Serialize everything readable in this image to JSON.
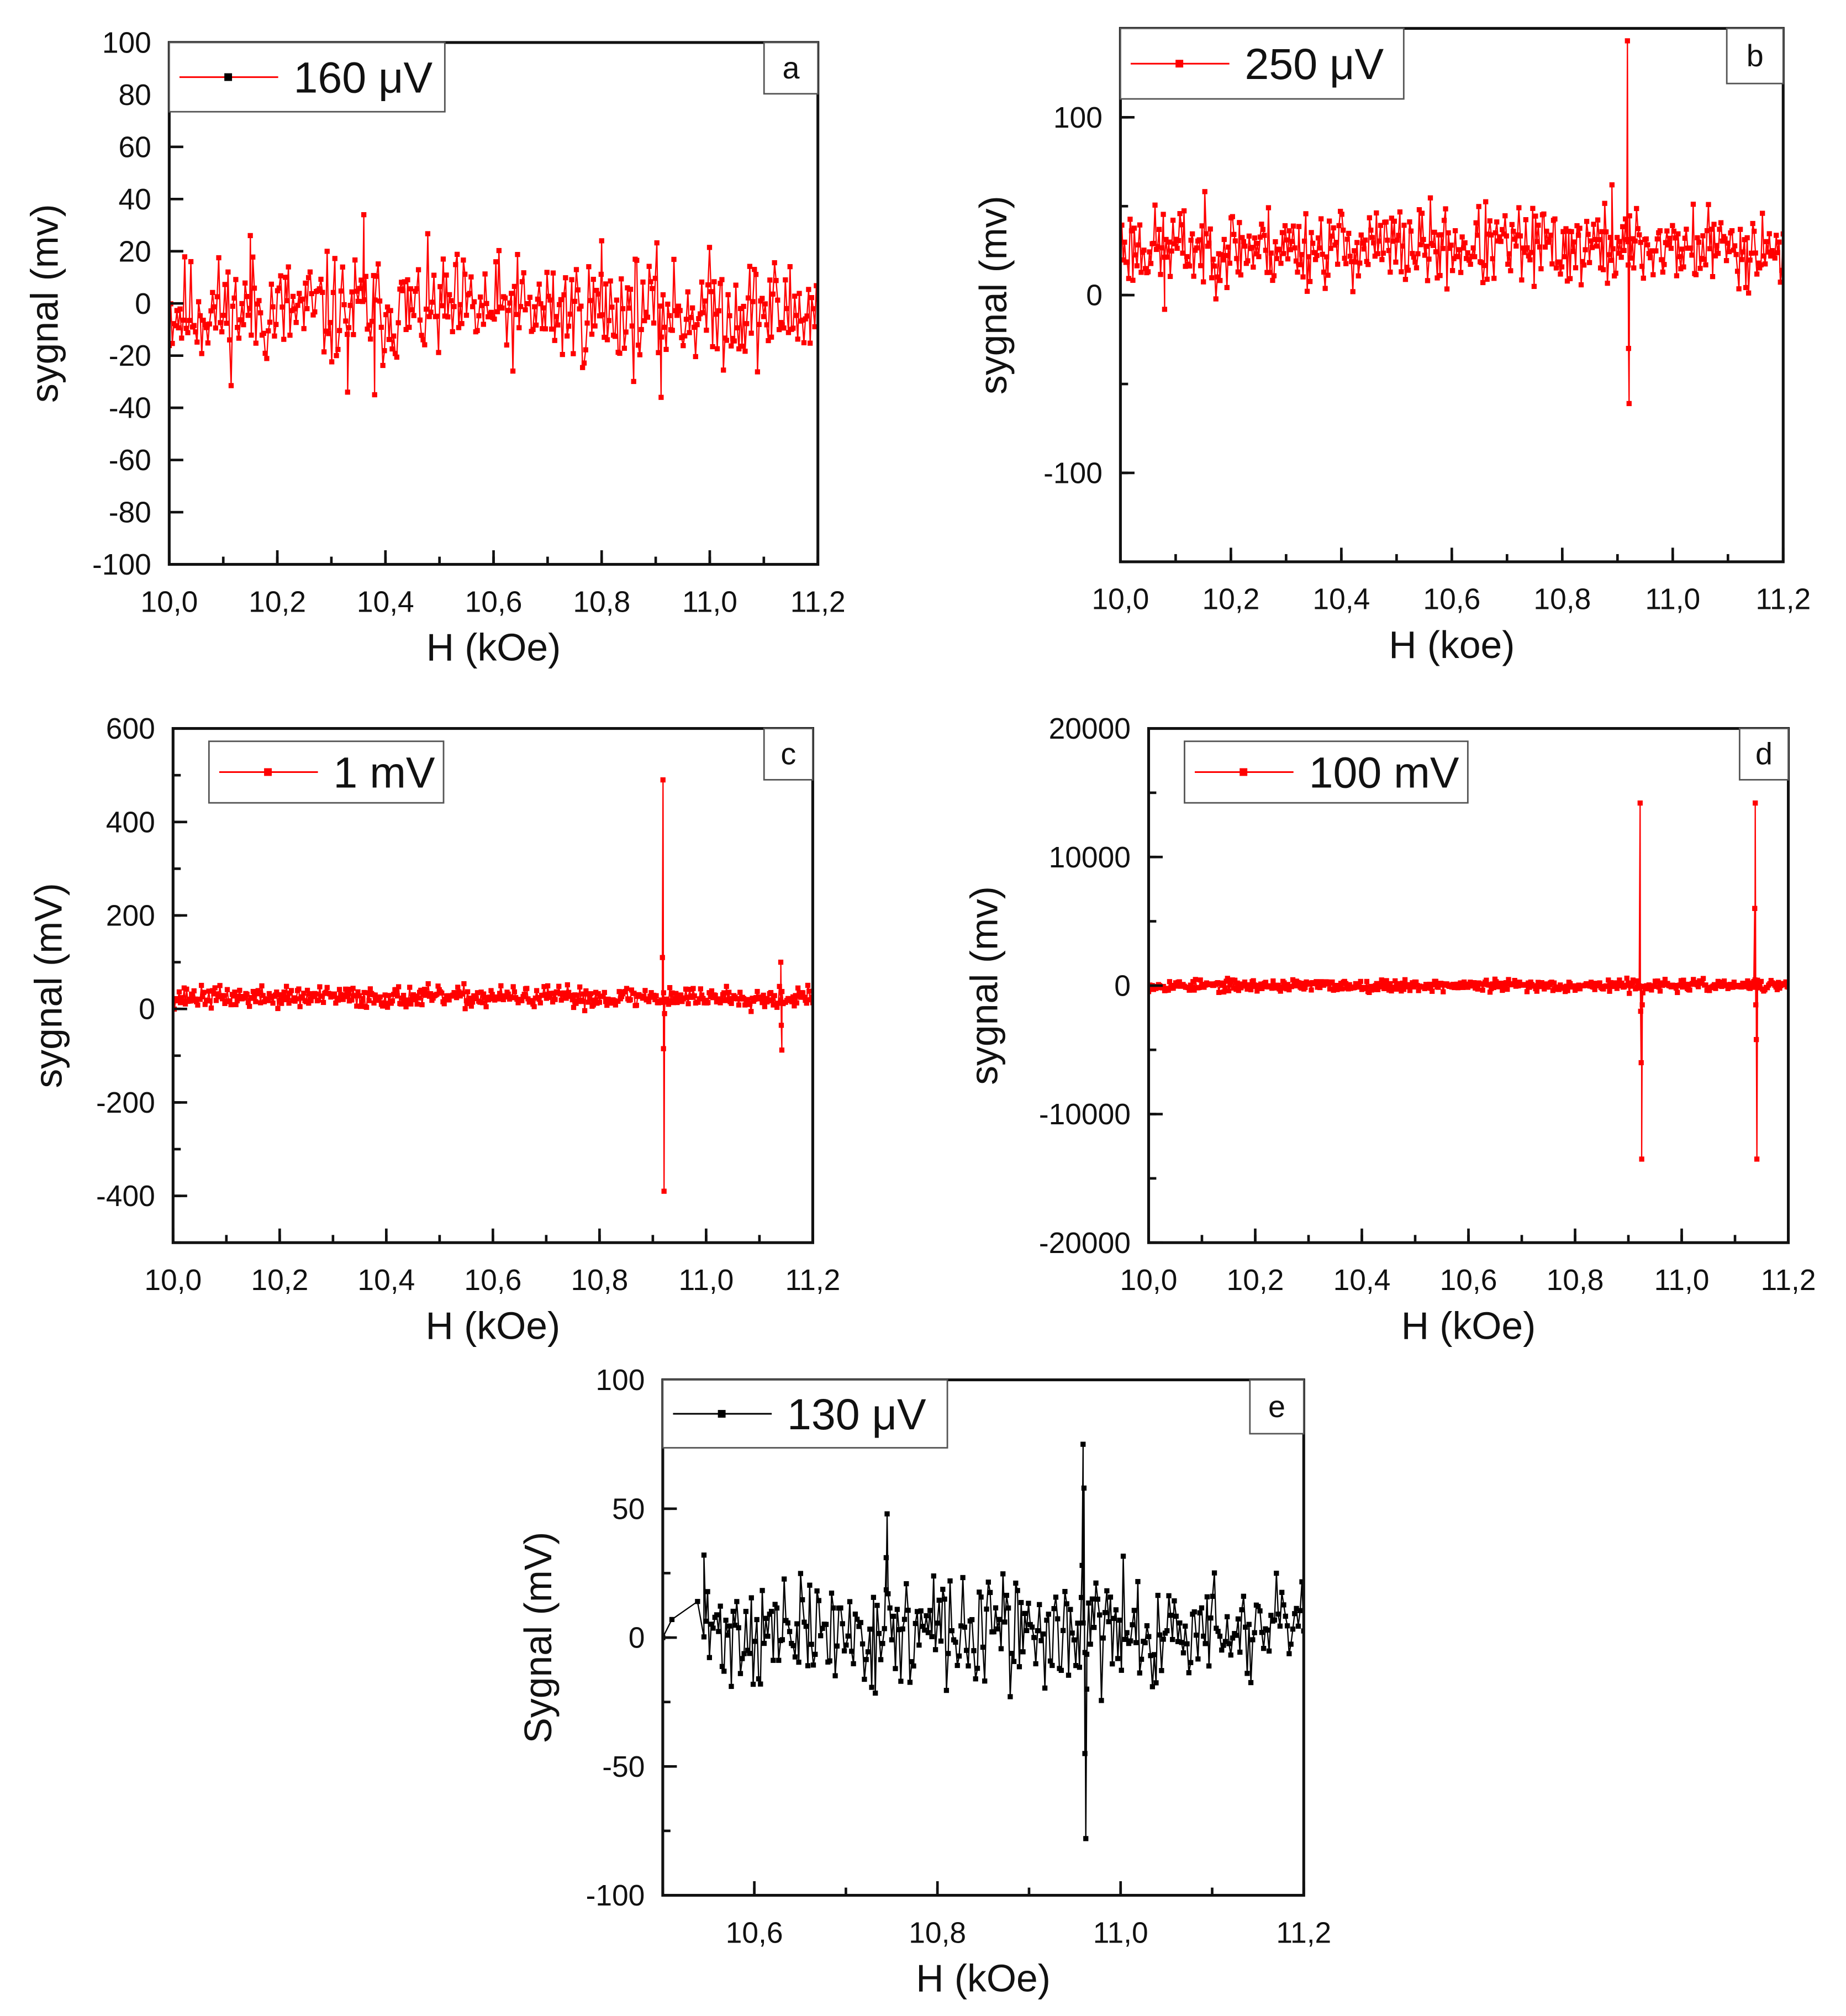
{
  "chart_data": [
    {
      "id": "a",
      "type": "line",
      "panel_label": "a",
      "legend": "160 μV",
      "color": "#ff0000",
      "xlabel": "H (kOe)",
      "ylabel": "sygnal (mv)",
      "xlim": [
        10.0,
        11.2
      ],
      "ylim": [
        -100,
        100
      ],
      "xticks": [
        10.0,
        10.2,
        10.4,
        10.6,
        10.8,
        11.0,
        11.2
      ],
      "xtick_labels": [
        "10,0",
        "10,2",
        "10,4",
        "10,6",
        "10,8",
        "11,0",
        "11,2"
      ],
      "xminor": 0.1,
      "yticks": [
        -100,
        -80,
        -60,
        -40,
        -20,
        0,
        20,
        40,
        60,
        80,
        100
      ],
      "ytick_labels": [
        "-100",
        "-80",
        "-60",
        "-40",
        "-20",
        "0",
        "20",
        "40",
        "60",
        "80",
        "100"
      ],
      "yminor": null,
      "legend_marker_color": "#000000",
      "noise": {
        "x_start": 10.0,
        "x_end": 11.2,
        "n": 420,
        "mean": -3,
        "amplitude": 13,
        "seed": 11
      },
      "points": [
        [
          10.36,
          34
        ],
        [
          10.33,
          -34
        ],
        [
          10.38,
          -35
        ],
        [
          10.91,
          -36
        ],
        [
          10.15,
          26
        ],
        [
          10.8,
          24
        ]
      ]
    },
    {
      "id": "b",
      "type": "line",
      "panel_label": "b",
      "legend": "250 μV",
      "color": "#ff0000",
      "xlabel": "H (koe)",
      "ylabel": "sygnal (mv)",
      "xlim": [
        10.0,
        11.2
      ],
      "ylim": [
        -150,
        150
      ],
      "xticks": [
        10.0,
        10.2,
        10.4,
        10.6,
        10.8,
        11.0,
        11.2
      ],
      "xtick_labels": [
        "10,0",
        "10,2",
        "10,4",
        "10,6",
        "10,8",
        "11,0",
        "11,2"
      ],
      "xminor": 0.1,
      "yticks": [
        -100,
        0,
        100
      ],
      "ytick_labels": [
        "-100",
        "0",
        "100"
      ],
      "yminor": 50,
      "noise": {
        "x_start": 10.0,
        "x_end": 11.2,
        "n": 480,
        "mean": 27,
        "amplitude": 14,
        "seed": 23
      },
      "points": [
        [
          10.918,
          143
        ],
        [
          10.919,
          30
        ],
        [
          10.92,
          -30
        ],
        [
          10.921,
          -61
        ],
        [
          10.89,
          62
        ],
        [
          10.08,
          -8
        ]
      ]
    },
    {
      "id": "c",
      "type": "line",
      "panel_label": "c",
      "legend": "1 mV",
      "color": "#ff0000",
      "xlabel": "H (kOe)",
      "ylabel": "sygnal (mV)",
      "xlim": [
        10.0,
        11.2
      ],
      "ylim": [
        -500,
        600
      ],
      "xticks": [
        10.0,
        10.2,
        10.4,
        10.6,
        10.8,
        11.0,
        11.2
      ],
      "xtick_labels": [
        "10,0",
        "10,2",
        "10,4",
        "10,6",
        "10,8",
        "11,0",
        "11,2"
      ],
      "xminor": 0.1,
      "yticks": [
        -400,
        -200,
        0,
        200,
        400,
        600
      ],
      "ytick_labels": [
        "-400",
        "-200",
        "0",
        "200",
        "400",
        "600"
      ],
      "yminor": 100,
      "noise": {
        "x_start": 10.0,
        "x_end": 11.2,
        "n": 520,
        "mean": 25,
        "amplitude": 14,
        "seed": 37
      },
      "points": [
        [
          10.918,
          110
        ],
        [
          10.919,
          490
        ],
        [
          10.92,
          -85
        ],
        [
          10.921,
          -390
        ],
        [
          10.922,
          -10
        ],
        [
          11.14,
          100
        ],
        [
          11.141,
          -35
        ],
        [
          11.142,
          -88
        ]
      ]
    },
    {
      "id": "d",
      "type": "line",
      "panel_label": "d",
      "legend": "100 mV",
      "color": "#ff0000",
      "xlabel": "H (kOe)",
      "ylabel": "sygnal (mv)",
      "xlim": [
        10.0,
        11.2
      ],
      "ylim": [
        -20000,
        20000
      ],
      "xticks": [
        10.0,
        10.2,
        10.4,
        10.6,
        10.8,
        11.0,
        11.2
      ],
      "xtick_labels": [
        "10,0",
        "10,2",
        "10,4",
        "10,6",
        "10,8",
        "11,0",
        "11,2"
      ],
      "xminor": 0.1,
      "yticks": [
        -20000,
        -10000,
        0,
        10000,
        20000
      ],
      "ytick_labels": [
        "-20000",
        "-10000",
        "0",
        "10000",
        "20000"
      ],
      "yminor": 5000,
      "noise": {
        "x_start": 10.0,
        "x_end": 11.2,
        "n": 520,
        "mean": 0,
        "amplitude": 280,
        "seed": 53
      },
      "points": [
        [
          10.922,
          14200
        ],
        [
          10.923,
          -2000
        ],
        [
          10.924,
          -6000
        ],
        [
          10.925,
          -13500
        ],
        [
          10.926,
          -1500
        ],
        [
          11.137,
          6000
        ],
        [
          11.138,
          14200
        ],
        [
          11.139,
          -1500
        ],
        [
          11.14,
          -4200
        ],
        [
          11.141,
          -13500
        ]
      ]
    },
    {
      "id": "e",
      "type": "line",
      "panel_label": "e",
      "legend": "130  μV",
      "color": "#000000",
      "xlabel": "H (kOe)",
      "ylabel": "Sygnal (mV)",
      "xlim": [
        10.5,
        11.2
      ],
      "ylim": [
        -100,
        100
      ],
      "xticks": [
        10.6,
        10.8,
        11.0,
        11.2
      ],
      "xtick_labels": [
        "10,6",
        "10,8",
        "11,0",
        "11,2"
      ],
      "xminor": 0.1,
      "yticks": [
        -100,
        -50,
        0,
        50,
        100
      ],
      "ytick_labels": [
        "-100",
        "-50",
        "0",
        "50",
        "100"
      ],
      "yminor": 25,
      "noise": {
        "x_start": 10.545,
        "x_end": 11.2,
        "n": 330,
        "mean": 2,
        "amplitude": 13,
        "seed": 71
      },
      "lead_points": [
        [
          10.5,
          0
        ],
        [
          10.51,
          7
        ],
        [
          10.538,
          14
        ]
      ],
      "points": [
        [
          10.958,
          28
        ],
        [
          10.959,
          75
        ],
        [
          10.96,
          58
        ],
        [
          10.961,
          -45
        ],
        [
          10.962,
          -78
        ],
        [
          10.963,
          -20
        ],
        [
          10.745,
          48
        ],
        [
          10.744,
          31
        ],
        [
          10.545,
          32
        ]
      ]
    }
  ]
}
